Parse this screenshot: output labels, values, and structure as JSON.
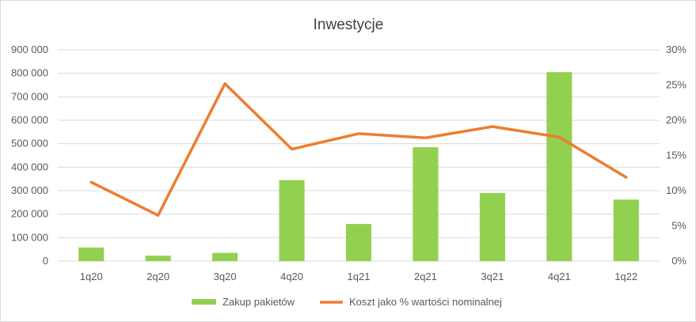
{
  "chart_data": {
    "type": "bar",
    "title": "Inwestycje",
    "categories": [
      "1q20",
      "2q20",
      "3q20",
      "4q20",
      "1q21",
      "2q21",
      "3q21",
      "4q21",
      "1q22"
    ],
    "series": [
      {
        "name": "Zakup pakietów",
        "type": "bar",
        "axis": "left",
        "color": "#92d050",
        "values": [
          58000,
          23000,
          35000,
          345000,
          158000,
          485000,
          290000,
          805000,
          262000
        ]
      },
      {
        "name": "Koszt jako % wartości nominalnej",
        "type": "line",
        "axis": "right",
        "color": "#ed7d31",
        "values": [
          0.112,
          0.065,
          0.252,
          0.159,
          0.181,
          0.175,
          0.191,
          0.176,
          0.119
        ]
      }
    ],
    "y_left": {
      "min": 0,
      "max": 900000,
      "ticks": [
        0,
        100000,
        200000,
        300000,
        400000,
        500000,
        600000,
        700000,
        800000,
        900000
      ],
      "tick_labels": [
        "0",
        "100 000",
        "200 000",
        "300 000",
        "400 000",
        "500 000",
        "600 000",
        "700 000",
        "800 000",
        "900 000"
      ]
    },
    "y_right": {
      "min": 0,
      "max": 0.3,
      "ticks": [
        0,
        0.05,
        0.1,
        0.15,
        0.2,
        0.25,
        0.3
      ],
      "tick_labels": [
        "0%",
        "5%",
        "10%",
        "15%",
        "20%",
        "25%",
        "30%"
      ]
    },
    "grid": "horizontal",
    "legend_position": "bottom"
  }
}
